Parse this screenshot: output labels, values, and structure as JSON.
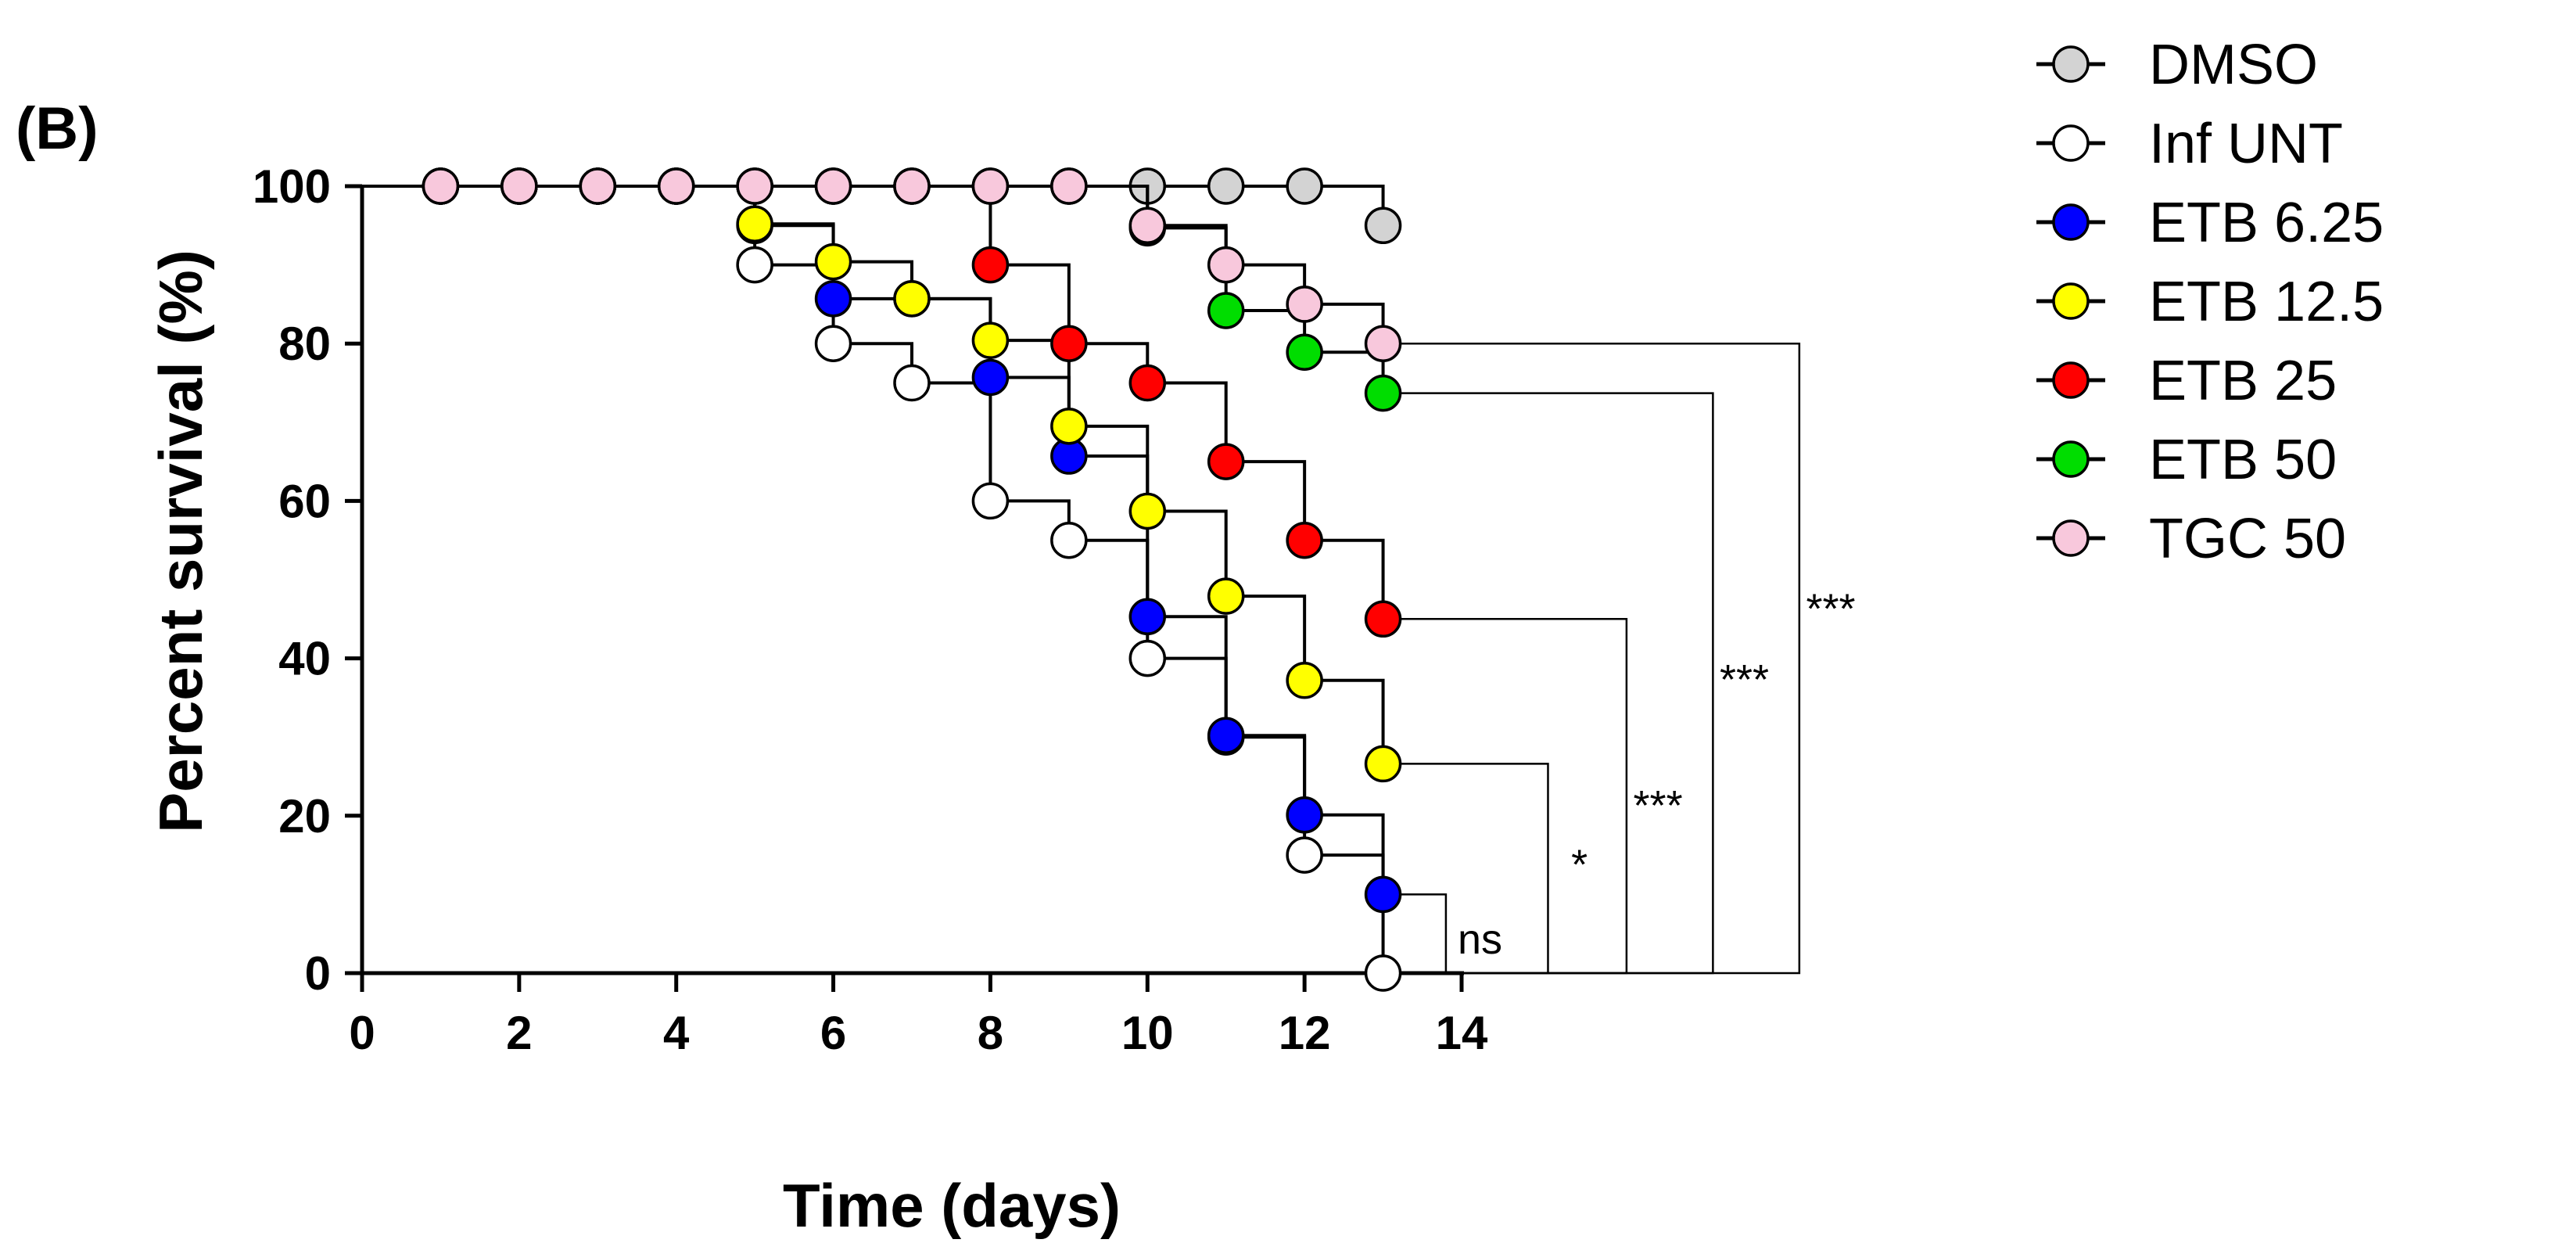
{
  "panel_label": "(B)",
  "chart_data": {
    "type": "line",
    "subtype": "kaplan-meier-step",
    "title": "",
    "xlabel": "Time (days)",
    "ylabel": "Percent survival (%)",
    "xlim": [
      0,
      14
    ],
    "ylim": [
      0,
      100
    ],
    "x_ticks": [
      0,
      2,
      4,
      6,
      8,
      10,
      12,
      14
    ],
    "y_ticks": [
      0,
      20,
      40,
      60,
      80,
      100
    ],
    "grid": false,
    "legend_position": "top-right outside",
    "series": [
      {
        "name": "DMSO",
        "color": "#d3d3d3",
        "points": [
          [
            1,
            100
          ],
          [
            2,
            100
          ],
          [
            3,
            100
          ],
          [
            4,
            100
          ],
          [
            5,
            100
          ],
          [
            6,
            100
          ],
          [
            7,
            100
          ],
          [
            8,
            100
          ],
          [
            9,
            100
          ],
          [
            10,
            100
          ],
          [
            11,
            100
          ],
          [
            12,
            100
          ],
          [
            13,
            95
          ]
        ]
      },
      {
        "name": "Inf UNT",
        "color": "#ffffff",
        "points": [
          [
            1,
            100
          ],
          [
            2,
            100
          ],
          [
            3,
            100
          ],
          [
            4,
            100
          ],
          [
            5,
            90
          ],
          [
            6,
            80
          ],
          [
            7,
            75
          ],
          [
            8,
            60
          ],
          [
            9,
            55
          ],
          [
            10,
            40
          ],
          [
            11,
            30
          ],
          [
            12,
            15
          ],
          [
            13,
            0
          ]
        ]
      },
      {
        "name": "ETB 6.25",
        "color": "#0000ff",
        "points": [
          [
            1,
            100
          ],
          [
            2,
            100
          ],
          [
            3,
            100
          ],
          [
            4,
            100
          ],
          [
            5,
            95
          ],
          [
            6,
            85.7
          ],
          [
            7,
            85.7
          ],
          [
            8,
            75.7
          ],
          [
            9,
            65.7
          ],
          [
            10,
            45.3
          ],
          [
            11,
            30.2
          ],
          [
            12,
            20.1
          ],
          [
            13,
            10
          ]
        ]
      },
      {
        "name": "ETB 12.5",
        "color": "#ffff00",
        "points": [
          [
            1,
            100
          ],
          [
            2,
            100
          ],
          [
            3,
            100
          ],
          [
            4,
            100
          ],
          [
            5,
            95.2
          ],
          [
            6,
            90.4
          ],
          [
            7,
            85.7
          ],
          [
            8,
            80.4
          ],
          [
            9,
            69.5
          ],
          [
            10,
            58.7
          ],
          [
            11,
            47.9
          ],
          [
            12,
            37.2
          ],
          [
            13,
            26.6
          ]
        ]
      },
      {
        "name": "ETB 25",
        "color": "#ff0000",
        "points": [
          [
            1,
            100
          ],
          [
            2,
            100
          ],
          [
            3,
            100
          ],
          [
            4,
            100
          ],
          [
            5,
            100
          ],
          [
            6,
            100
          ],
          [
            7,
            100
          ],
          [
            8,
            90
          ],
          [
            9,
            80
          ],
          [
            10,
            75
          ],
          [
            11,
            65
          ],
          [
            12,
            55
          ],
          [
            13,
            45
          ]
        ]
      },
      {
        "name": "ETB 50",
        "color": "#00dd00",
        "points": [
          [
            1,
            100
          ],
          [
            2,
            100
          ],
          [
            3,
            100
          ],
          [
            4,
            100
          ],
          [
            5,
            100
          ],
          [
            6,
            100
          ],
          [
            7,
            100
          ],
          [
            8,
            100
          ],
          [
            9,
            100
          ],
          [
            10,
            94.7
          ],
          [
            11,
            84.2
          ],
          [
            12,
            78.9
          ],
          [
            13,
            73.7
          ]
        ]
      },
      {
        "name": "TGC 50",
        "color": "#f8c8dc",
        "points": [
          [
            1,
            100
          ],
          [
            2,
            100
          ],
          [
            3,
            100
          ],
          [
            4,
            100
          ],
          [
            5,
            100
          ],
          [
            6,
            100
          ],
          [
            7,
            100
          ],
          [
            8,
            100
          ],
          [
            9,
            100
          ],
          [
            10,
            95
          ],
          [
            11,
            90
          ],
          [
            12,
            85
          ],
          [
            13,
            80
          ]
        ]
      }
    ],
    "significance": [
      {
        "label": "ns",
        "series": "ETB 6.25",
        "y": 10
      },
      {
        "label": "*",
        "series": "ETB 12.5",
        "y": 26.6
      },
      {
        "label": "***",
        "series": "ETB 25",
        "y": 45
      },
      {
        "label": "***",
        "series": "ETB 50",
        "y": 73.7
      },
      {
        "label": "***",
        "series": "TGC 50",
        "y": 80
      }
    ]
  }
}
